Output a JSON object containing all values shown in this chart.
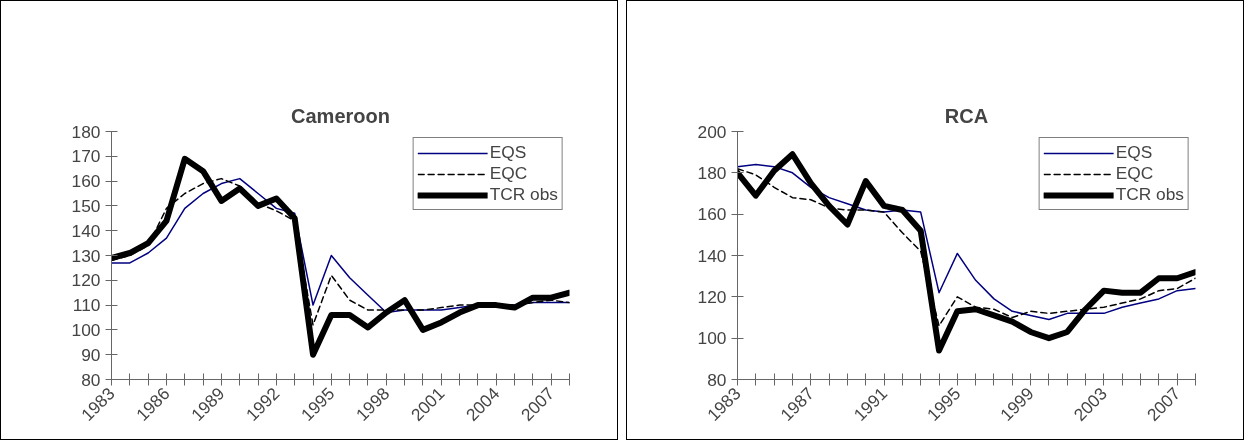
{
  "chart_data": [
    {
      "type": "line",
      "title": "Cameroon",
      "x": [
        1983,
        1984,
        1985,
        1986,
        1987,
        1988,
        1989,
        1990,
        1991,
        1992,
        1993,
        1994,
        1995,
        1996,
        1997,
        1998,
        1999,
        2000,
        2001,
        2002,
        2003,
        2004,
        2005,
        2006,
        2007,
        2008
      ],
      "series": [
        {
          "name": "EQS",
          "color": "#000080",
          "line_style": "solid",
          "values": [
            127,
            127,
            131,
            137,
            149,
            155,
            159,
            161,
            155,
            149,
            147,
            110,
            130,
            121,
            114,
            107,
            108,
            108,
            108,
            109,
            110,
            110,
            110,
            111,
            111,
            111
          ]
        },
        {
          "name": "EQC",
          "color": "#000000",
          "line_style": "dashed",
          "values": [
            128,
            130,
            134,
            149,
            155,
            159,
            161,
            158,
            151,
            148,
            144,
            102,
            122,
            112,
            108,
            108,
            108,
            108,
            109,
            110,
            110,
            110,
            110,
            111,
            112,
            111
          ]
        },
        {
          "name": "TCR obs",
          "color": "#000000",
          "line_style": "solid",
          "values": [
            129,
            131,
            135,
            144,
            169,
            164,
            152,
            157,
            150,
            153,
            145,
            90,
            106,
            106,
            101,
            107,
            112,
            100,
            103,
            107,
            110,
            110,
            109,
            113,
            113,
            115
          ]
        }
      ],
      "xlim": [
        1983,
        2008
      ],
      "xticks": [
        1983,
        {
          "value": 1984,
          "label": null
        },
        {
          "value": 1985,
          "label": null
        },
        1986,
        {
          "value": 1987,
          "label": null
        },
        {
          "value": 1988,
          "label": null
        },
        1989,
        {
          "value": 1990,
          "label": null
        },
        {
          "value": 1991,
          "label": null
        },
        1992,
        {
          "value": 1993,
          "label": null
        },
        {
          "value": 1994,
          "label": null
        },
        1995,
        {
          "value": 1996,
          "label": null
        },
        {
          "value": 1997,
          "label": null
        },
        1998,
        {
          "value": 1999,
          "label": null
        },
        {
          "value": 2000,
          "label": null
        },
        2001,
        {
          "value": 2002,
          "label": null
        },
        {
          "value": 2003,
          "label": null
        },
        2004,
        {
          "value": 2005,
          "label": null
        },
        {
          "value": 2006,
          "label": null
        },
        2007,
        {
          "value": 2008,
          "label": null
        }
      ],
      "ylim": [
        80,
        180
      ],
      "yticks": [
        80,
        90,
        100,
        110,
        120,
        130,
        140,
        150,
        160,
        170,
        180
      ],
      "grid": false,
      "legend": "top right",
      "marker": "none"
    },
    {
      "type": "line",
      "title": "RCA",
      "x": [
        1983,
        1984,
        1985,
        1986,
        1987,
        1988,
        1989,
        1990,
        1991,
        1992,
        1993,
        1994,
        1995,
        1996,
        1997,
        1998,
        1999,
        2000,
        2001,
        2002,
        2003,
        2004,
        2005,
        2006,
        2007,
        2008
      ],
      "series": [
        {
          "name": "EQS",
          "color": "#000080",
          "line_style": "solid",
          "values": [
            183,
            184,
            183,
            180,
            173,
            168,
            165,
            162,
            161,
            162,
            161,
            122,
            141,
            128,
            119,
            113,
            111,
            109,
            112,
            112,
            112,
            115,
            117,
            119,
            123,
            124
          ]
        },
        {
          "name": "EQC",
          "color": "#000000",
          "line_style": "dashed",
          "values": [
            182,
            179,
            173,
            168,
            167,
            163,
            162,
            162,
            161,
            151,
            142,
            106,
            120,
            115,
            114,
            110,
            113,
            112,
            113,
            114,
            115,
            117,
            119,
            123,
            124,
            129
          ]
        },
        {
          "name": "TCR obs",
          "color": "#000000",
          "line_style": "solid",
          "values": [
            180,
            169,
            181,
            189,
            175,
            164,
            155,
            176,
            164,
            162,
            152,
            94,
            113,
            114,
            111,
            108,
            103,
            100,
            103,
            114,
            123,
            122,
            122,
            129,
            129,
            132
          ]
        }
      ],
      "xlim": [
        1983,
        2008
      ],
      "xticks": [
        1983,
        {
          "value": 1984,
          "label": null
        },
        {
          "value": 1985,
          "label": null
        },
        {
          "value": 1986,
          "label": null
        },
        1987,
        {
          "value": 1988,
          "label": null
        },
        {
          "value": 1989,
          "label": null
        },
        {
          "value": 1990,
          "label": null
        },
        1991,
        {
          "value": 1992,
          "label": null
        },
        {
          "value": 1993,
          "label": null
        },
        {
          "value": 1994,
          "label": null
        },
        1995,
        {
          "value": 1996,
          "label": null
        },
        {
          "value": 1997,
          "label": null
        },
        {
          "value": 1998,
          "label": null
        },
        1999,
        {
          "value": 2000,
          "label": null
        },
        {
          "value": 2001,
          "label": null
        },
        {
          "value": 2002,
          "label": null
        },
        2003,
        {
          "value": 2004,
          "label": null
        },
        {
          "value": 2005,
          "label": null
        },
        {
          "value": 2006,
          "label": null
        },
        2007,
        {
          "value": 2008,
          "label": null
        }
      ],
      "ylim": [
        80,
        200
      ],
      "yticks": [
        80,
        100,
        120,
        140,
        160,
        180,
        200
      ],
      "grid": false,
      "legend": "top right",
      "marker": "none"
    }
  ]
}
